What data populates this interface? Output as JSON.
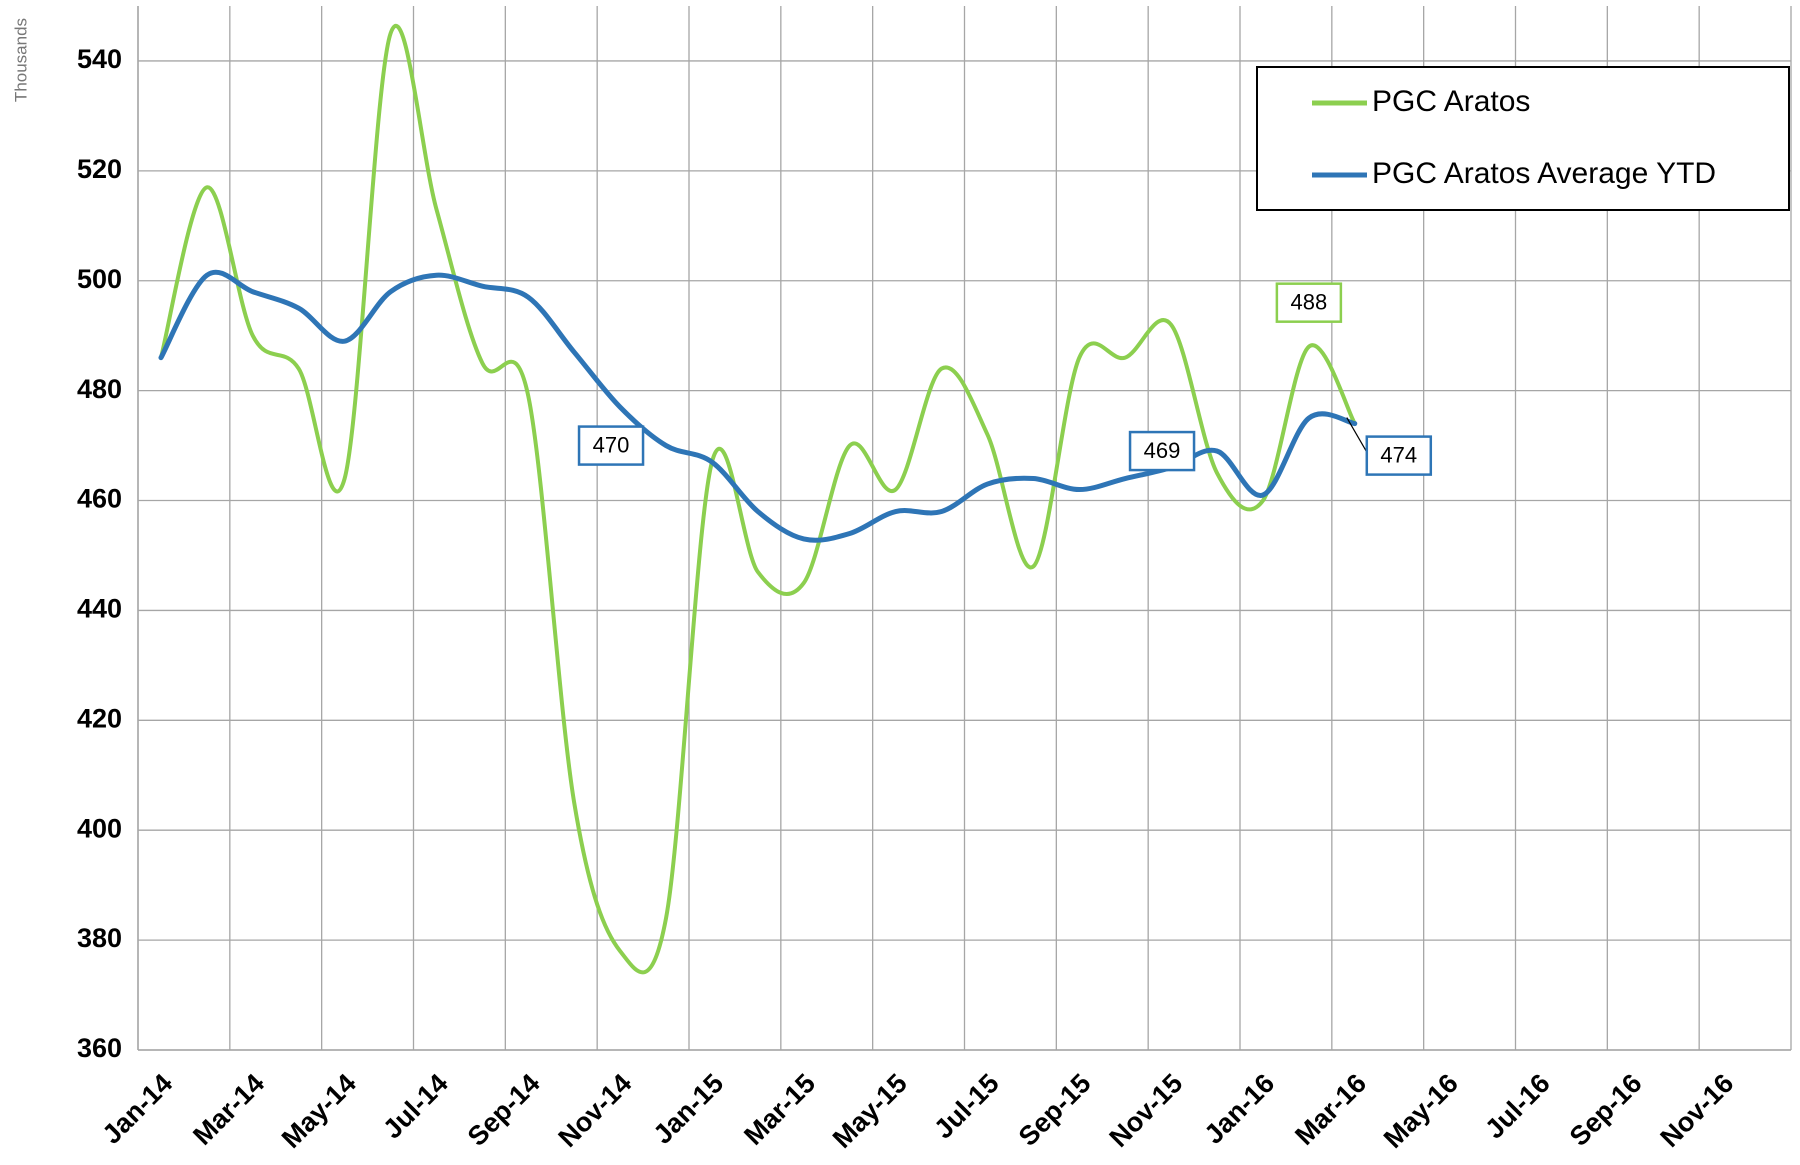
{
  "chart_data": {
    "type": "line",
    "y_label": "Thousands",
    "categories": [
      "Jan-14",
      null,
      "Mar-14",
      null,
      "May-14",
      null,
      "Jul-14",
      null,
      "Sep-14",
      null,
      "Nov-14",
      null,
      "Jan-15",
      null,
      "Mar-15",
      null,
      "May-15",
      null,
      "Jul-15",
      null,
      "Sep-15",
      null,
      "Nov-15",
      null,
      "Jan-16",
      null,
      "Mar-16",
      null,
      "May-16",
      null,
      "Jul-16",
      null,
      "Sep-16",
      null,
      "Nov-16",
      null
    ],
    "series": [
      {
        "name": "PGC Aratos",
        "color": "#8ccf4f",
        "label_points": [
          25
        ],
        "values": [
          486,
          517,
          490,
          484,
          464,
          545,
          513,
          485,
          479,
          405,
          378,
          384,
          467,
          447,
          445,
          470,
          462,
          484,
          472,
          448,
          486,
          486,
          492,
          465,
          460,
          488,
          474,
          null,
          null,
          null,
          null,
          null,
          null,
          null,
          null,
          null
        ]
      },
      {
        "name": "PGC Aratos Average YTD",
        "color": "#2e75b6",
        "label_points": [
          11,
          23,
          26
        ],
        "values": [
          486,
          501,
          498,
          495,
          489,
          498,
          501,
          499,
          497,
          487,
          477,
          470,
          467,
          458,
          453,
          454,
          458,
          458,
          463,
          464,
          462,
          464,
          466,
          469,
          461,
          475,
          474,
          null,
          null,
          null,
          null,
          null,
          null,
          null,
          null,
          null
        ]
      }
    ],
    "ylim": [
      360,
      550
    ],
    "yticks": [
      360,
      380,
      400,
      420,
      440,
      460,
      480,
      500,
      520,
      540
    ],
    "grid": true,
    "legend": "upper right"
  }
}
